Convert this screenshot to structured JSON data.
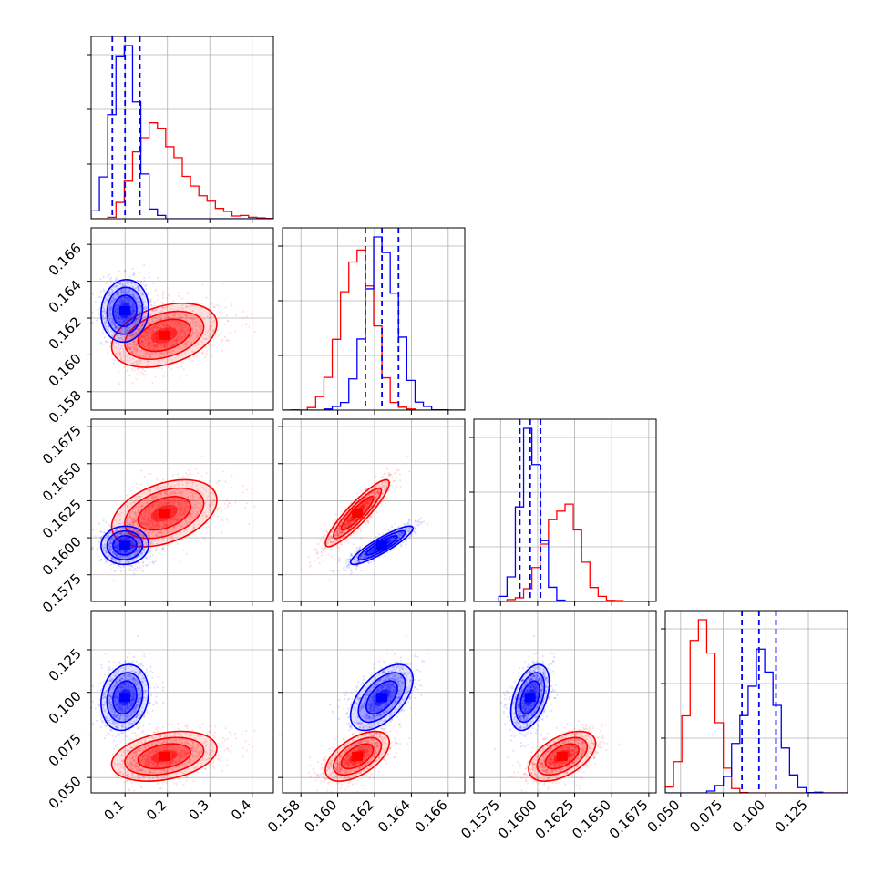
{
  "chart_data": {
    "type": "scatter",
    "subtype": "corner-plot",
    "title": "",
    "grid": true,
    "params": [
      {
        "range": [
          0.02,
          0.45
        ],
        "ticks": [
          0.1,
          0.2,
          0.3,
          0.4
        ],
        "tick_labels": [
          "0.1",
          "0.2",
          "0.3",
          "0.4"
        ]
      },
      {
        "range": [
          0.157,
          0.1669
        ],
        "ticks": [
          0.158,
          0.16,
          0.162,
          0.164,
          0.166
        ],
        "tick_labels": [
          "0.158",
          "0.160",
          "0.162",
          "0.164",
          "0.166"
        ]
      },
      {
        "range": [
          0.1557,
          0.168
        ],
        "ticks": [
          0.1575,
          0.16,
          0.1625,
          0.165,
          0.1675
        ],
        "tick_labels": [
          "0.1575",
          "0.1600",
          "0.1625",
          "0.1650",
          "0.1675"
        ]
      },
      {
        "range": [
          0.041,
          0.148
        ],
        "ticks": [
          0.05,
          0.075,
          0.1,
          0.125
        ],
        "tick_labels": [
          "0.050",
          "0.075",
          "0.100",
          "0.125"
        ]
      }
    ],
    "series": [
      {
        "color": "#ff0000",
        "mean": [
          0.195,
          0.1611,
          0.1617,
          0.0625
        ],
        "std": [
          0.062,
          0.00085,
          0.0011,
          0.0072
        ],
        "corr": [
          [
            1,
            0.35,
            0.4,
            0.3
          ],
          [
            0.35,
            1,
            0.9,
            0.55
          ],
          [
            0.4,
            0.9,
            1,
            0.5
          ],
          [
            0.3,
            0.55,
            0.5,
            1
          ]
        ],
        "quantile_lines": false
      },
      {
        "color": "#0000ff",
        "mean": [
          0.1,
          0.1624,
          0.1595,
          0.097
        ],
        "std": [
          0.028,
          0.00085,
          0.00065,
          0.0095
        ],
        "corr": [
          [
            1,
            0.1,
            0.05,
            0.2
          ],
          [
            0.1,
            1,
            0.9,
            0.55
          ],
          [
            0.05,
            0.9,
            1,
            0.45
          ],
          [
            0.2,
            0.55,
            0.45,
            1
          ]
        ],
        "quantile_lines": true,
        "quantiles": [
          [
            0.07,
            0.1,
            0.135
          ],
          [
            0.1615,
            0.1624,
            0.1633
          ],
          [
            0.1588,
            0.1595,
            0.1602
          ],
          [
            0.086,
            0.096,
            0.106
          ]
        ]
      }
    ]
  }
}
